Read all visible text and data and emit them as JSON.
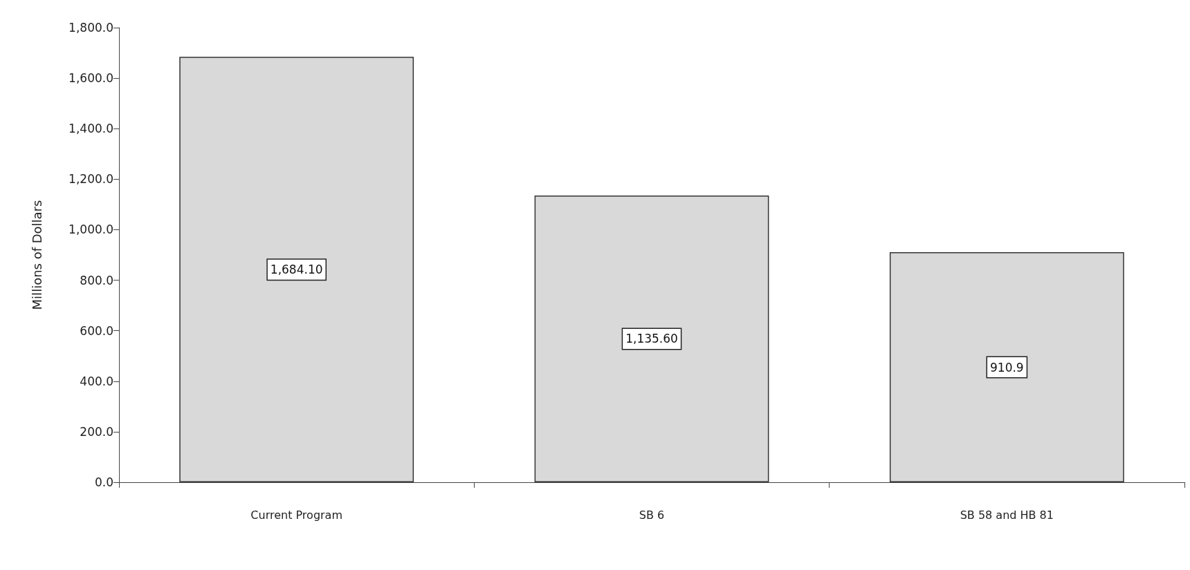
{
  "chart_data": {
    "type": "bar",
    "ylabel": "Millions of Dollars",
    "categories": [
      "Current Program",
      "SB 6",
      "SB 58 and HB 81"
    ],
    "values": [
      1684.1,
      1135.6,
      910.9
    ],
    "value_labels": [
      "1,684.10",
      "1,135.60",
      "910.9"
    ],
    "color": "#d9d9d9",
    "ylim": [
      0,
      1800
    ],
    "yticks": [
      {
        "value": 0,
        "label": "0.0"
      },
      {
        "value": 200,
        "label": "200.0"
      },
      {
        "value": 400,
        "label": "400.0"
      },
      {
        "value": 600,
        "label": "600.0"
      },
      {
        "value": 800,
        "label": "800.0"
      },
      {
        "value": 1000,
        "label": "1,000.0"
      },
      {
        "value": 1200,
        "label": "1,200.0"
      },
      {
        "value": 1400,
        "label": "1,400.0"
      },
      {
        "value": 1600,
        "label": "1,600.0"
      },
      {
        "value": 1800,
        "label": "1,800.0"
      }
    ],
    "grid": false
  }
}
